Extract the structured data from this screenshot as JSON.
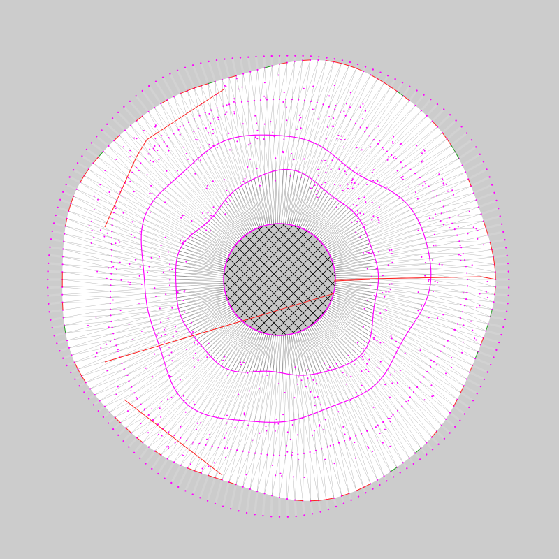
{
  "colors": {
    "background": "#cccccc",
    "ring_line": "#ff00ff",
    "boundary_dot": "#ff00ff",
    "spoke_light": "#d2d2d2",
    "fill": "#ffffff",
    "mesh_line": "#000000",
    "path_red": "#ff2020",
    "path_green": "#20a020",
    "core_fill": "#c8c8c8",
    "hatch": "#000000"
  },
  "diagram": {
    "kind": "radial-polygon-mesh",
    "ring_count": 5,
    "spokes_per_ring": 180,
    "core_style": "cross-hatched",
    "highlighted_paths": [
      "radial-ray",
      "outer-contour-fragments"
    ]
  }
}
